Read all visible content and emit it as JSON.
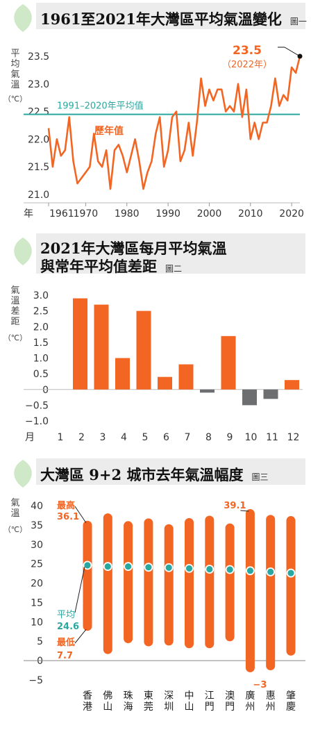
{
  "chart_data": [
    {
      "type": "line",
      "title": "1961至2021年大灣區平均氣溫變化",
      "figure_label": "圖一",
      "ylabel": "平均氣溫（℃）",
      "xlabel": "年",
      "ylim": [
        21.0,
        23.5
      ],
      "yticks": [
        "23.5",
        "23.0",
        "22.5",
        "22.0",
        "21.5",
        "21.0"
      ],
      "xticks": [
        "1961",
        "1970",
        "1980",
        "1990",
        "2000",
        "2010",
        "2020"
      ],
      "reference_value": 22.45,
      "reference_label": "1991–2020年平均值",
      "series_label": "歷年值",
      "highlight_value": "23.5",
      "highlight_year": "（2022年）",
      "series": [
        {
          "x": [
            1961,
            1962,
            1963,
            1964,
            1965,
            1966,
            1967,
            1968,
            1969,
            1970,
            1971,
            1972,
            1973,
            1974,
            1975,
            1976,
            1977,
            1978,
            1979,
            1980,
            1981,
            1982,
            1983,
            1984,
            1985,
            1986,
            1987,
            1988,
            1989,
            1990,
            1991,
            1992,
            1993,
            1994,
            1995,
            1996,
            1997,
            1998,
            1999,
            2000,
            2001,
            2002,
            2003,
            2004,
            2005,
            2006,
            2007,
            2008,
            2009,
            2010,
            2011,
            2012,
            2013,
            2014,
            2015,
            2016,
            2017,
            2018,
            2019,
            2020,
            2021,
            2022
          ],
          "values": [
            22.2,
            21.5,
            22.0,
            21.7,
            21.8,
            22.4,
            21.6,
            21.2,
            21.3,
            21.4,
            21.5,
            22.1,
            21.6,
            21.5,
            21.8,
            21.1,
            21.8,
            21.9,
            21.7,
            21.4,
            21.7,
            22.0,
            21.6,
            21.1,
            21.4,
            21.6,
            22.1,
            22.4,
            21.5,
            21.8,
            22.4,
            22.5,
            21.6,
            21.8,
            22.3,
            21.7,
            22.3,
            23.1,
            22.6,
            22.9,
            22.7,
            22.9,
            22.9,
            22.5,
            22.6,
            22.5,
            23.0,
            22.4,
            22.9,
            22.0,
            22.3,
            22.0,
            22.3,
            22.3,
            22.6,
            23.1,
            22.6,
            22.8,
            22.7,
            23.3,
            23.2,
            23.5
          ]
        }
      ]
    },
    {
      "type": "bar",
      "title_line1": "2021年大灣區每月平均氣溫",
      "title_line2": "與常年平均值差距",
      "figure_label": "圖二",
      "ylabel": "氣溫差距（℃）",
      "xlabel": "月",
      "ylim": [
        -1.0,
        3.0
      ],
      "yticks": [
        "3.0",
        "2.5",
        "2.0",
        "1.5",
        "1.0",
        "0.5",
        "0",
        "−0.5",
        "−1.0"
      ],
      "categories": [
        "1",
        "2",
        "3",
        "4",
        "5",
        "6",
        "7",
        "8",
        "9",
        "10",
        "11",
        "12"
      ],
      "values": [
        0.0,
        2.9,
        2.7,
        1.0,
        2.5,
        0.4,
        0.8,
        -0.1,
        1.7,
        -0.5,
        -0.3,
        0.3
      ],
      "colors": {
        "positive": "#f26522",
        "negative": "#6d6e70"
      }
    },
    {
      "type": "range-bar",
      "title": "大灣區 9+2 城市去年氣溫幅度",
      "figure_label": "圖三",
      "ylabel": "氣溫（℃）",
      "ylim": [
        -5,
        40
      ],
      "yticks": [
        "40",
        "35",
        "30",
        "25",
        "20",
        "15",
        "10",
        "5",
        "0",
        "−5"
      ],
      "categories": [
        "香港",
        "佛山",
        "珠海",
        "東莞",
        "深圳",
        "中山",
        "江門",
        "澳門",
        "廣州",
        "惠州",
        "肇慶"
      ],
      "max": [
        36.1,
        38.0,
        36.0,
        36.7,
        35.2,
        36.8,
        37.4,
        35.4,
        39.1,
        37.6,
        37.3
      ],
      "mean": [
        24.6,
        24.3,
        24.3,
        24.1,
        24.0,
        23.8,
        23.6,
        23.5,
        23.2,
        22.9,
        22.6
      ],
      "min": [
        7.7,
        1.7,
        4.5,
        3.7,
        3.9,
        3.2,
        3.2,
        5.0,
        -3.0,
        -2.5,
        1.3
      ],
      "labels": {
        "max": "最高",
        "max_value": "36.1",
        "mean": "平均",
        "mean_value": "24.6",
        "min": "最低",
        "min_value": "7.7",
        "guangzhou_max": "39.1",
        "guangzhou_min": "−3"
      }
    }
  ],
  "colors": {
    "accent": "#f26522",
    "teal": "#2aa8a0",
    "leaf": "#cfe8c8",
    "grey": "#6d6e70"
  }
}
